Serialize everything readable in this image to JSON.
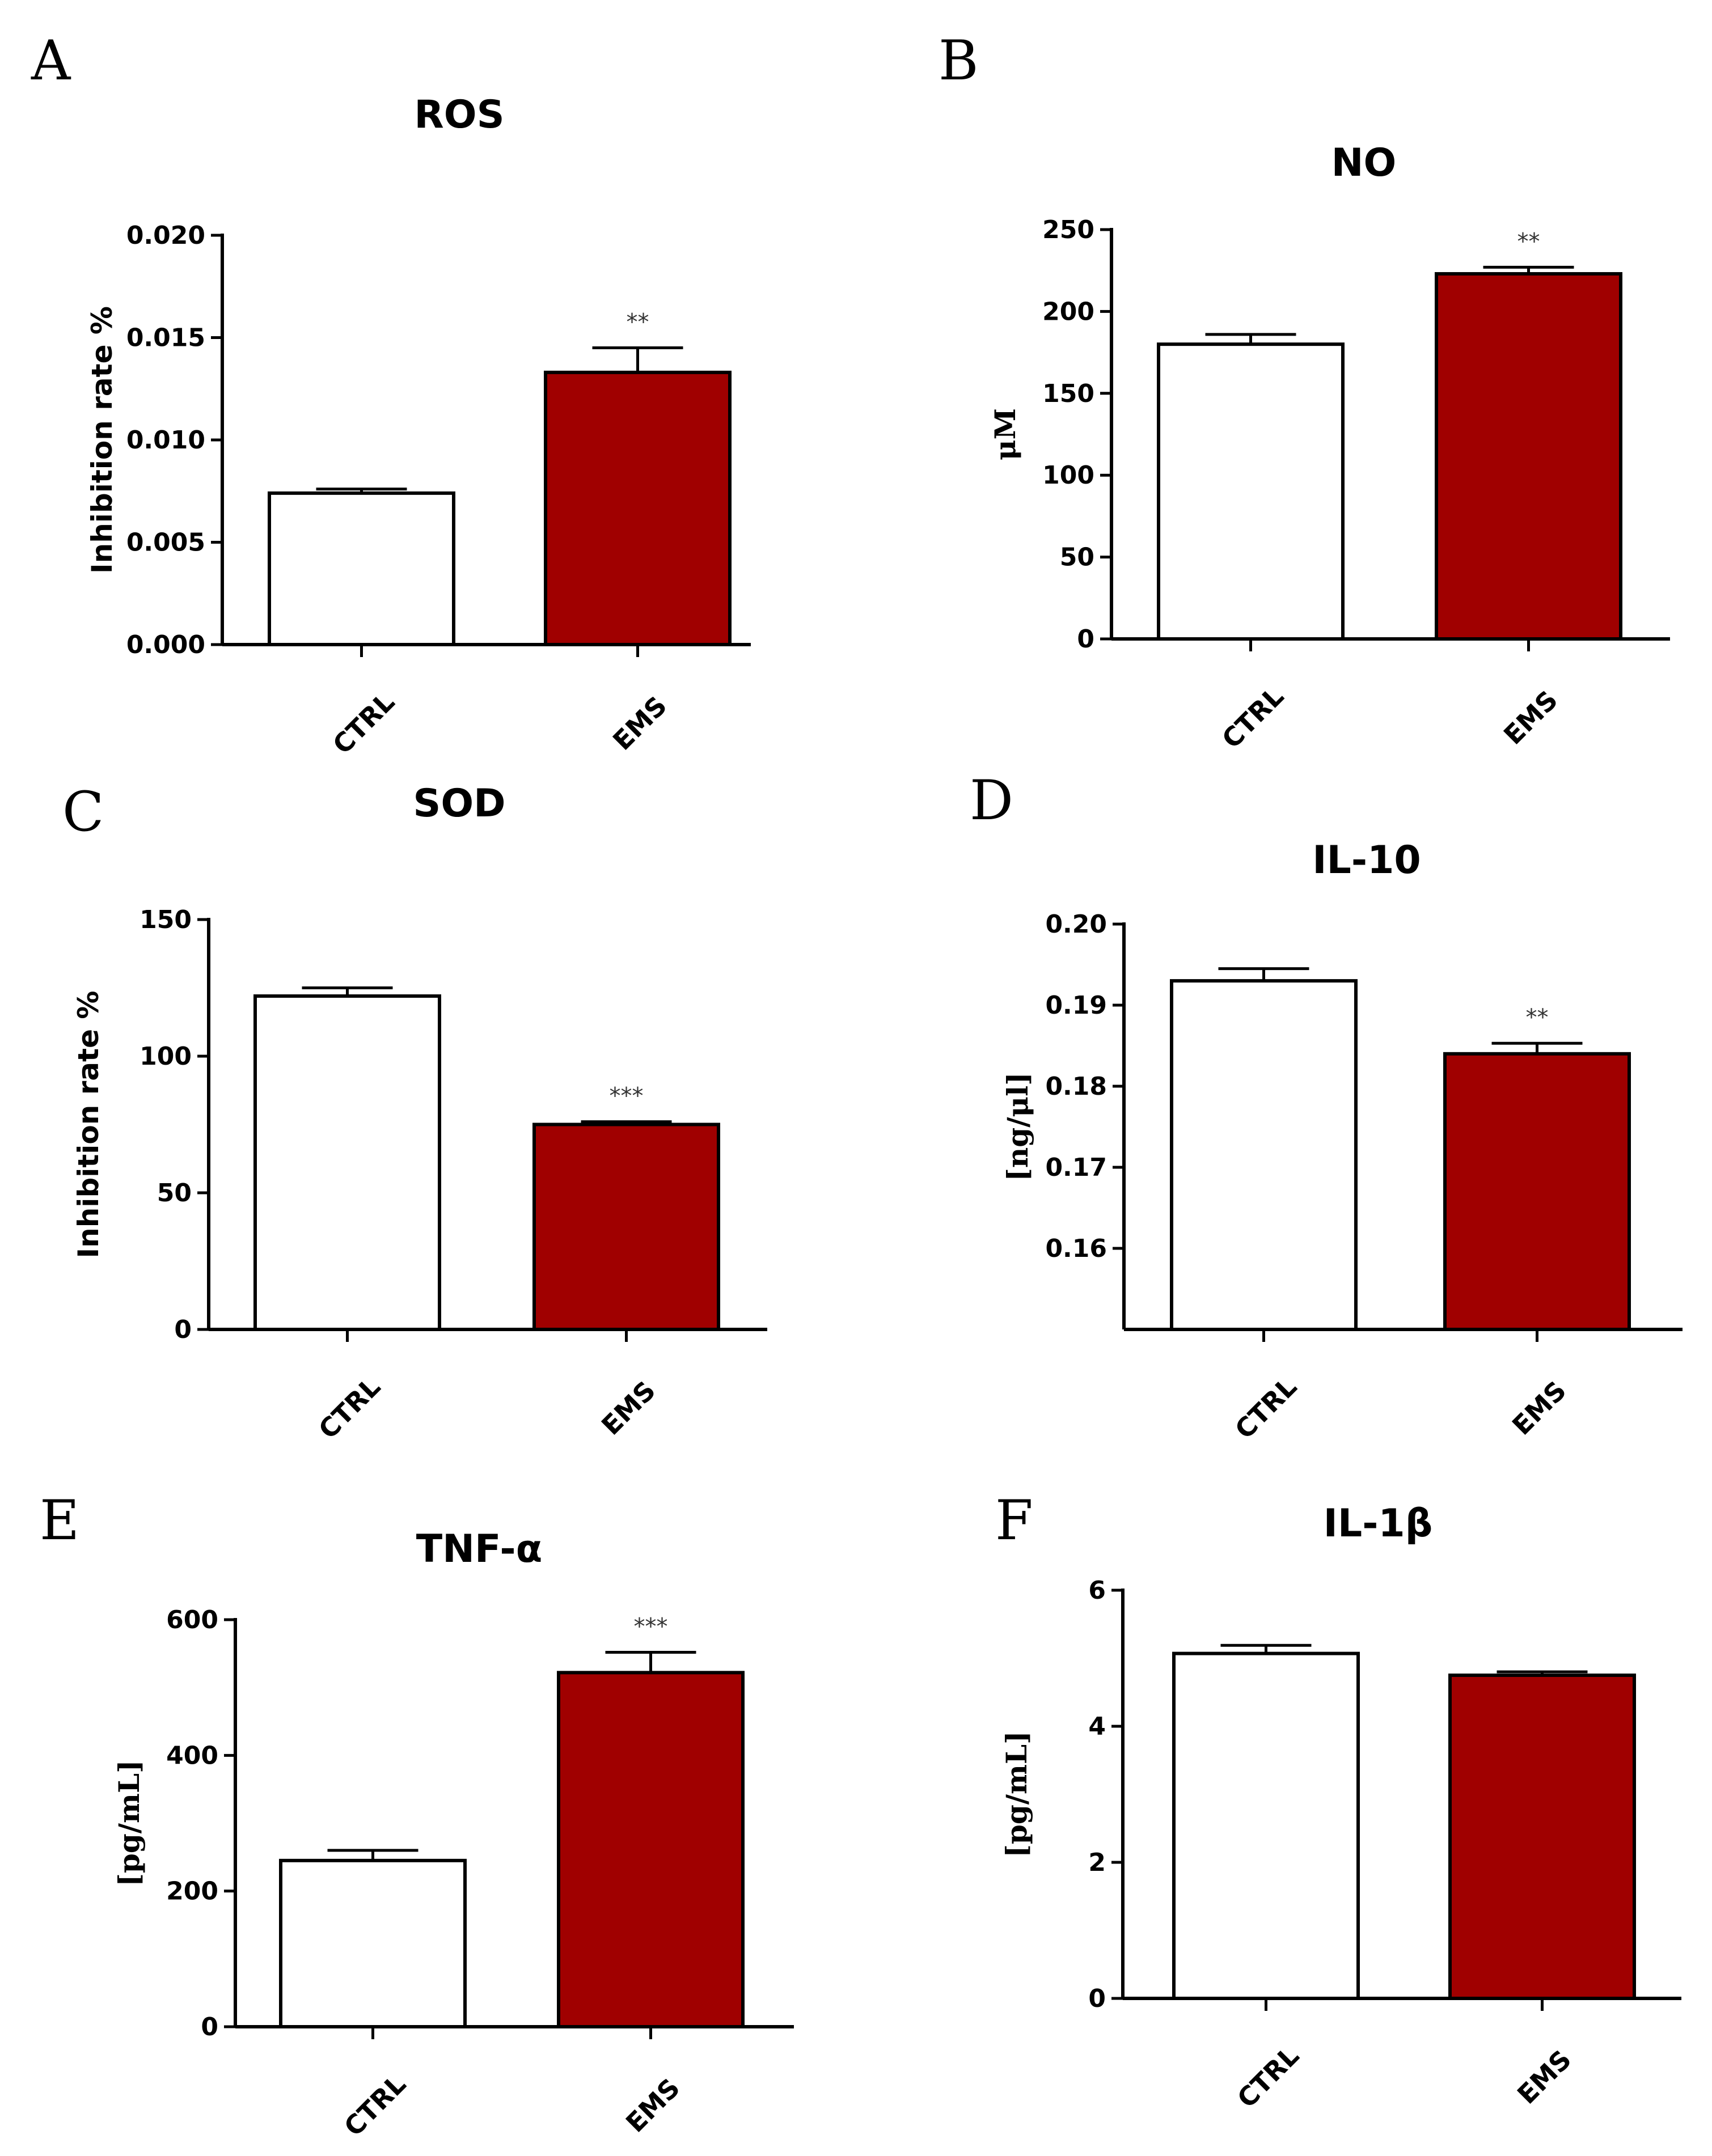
{
  "figure": {
    "colors": {
      "ctrl": "#ffffff",
      "ems": "#a00000",
      "axis": "#000000"
    }
  },
  "chart_data": [
    {
      "panel": "A",
      "type": "bar",
      "title": "ROS",
      "ylabel": "Inhibition rate %",
      "ylabel_style": "sans",
      "categories": [
        "CTRL",
        "EMS"
      ],
      "values": [
        0.0074,
        0.0133
      ],
      "errors": [
        0.0002,
        0.0012
      ],
      "significance": [
        "",
        "**"
      ],
      "ylim": [
        0,
        0.02
      ],
      "yticks": [
        0,
        0.005,
        0.01,
        0.015,
        0.02
      ],
      "ytick_labels": [
        "0.000",
        "0.005",
        "0.010",
        "0.015",
        "0.020"
      ]
    },
    {
      "panel": "B",
      "type": "bar",
      "title": "NO",
      "ylabel": "μM",
      "ylabel_style": "serif",
      "categories": [
        "CTRL",
        "EMS"
      ],
      "values": [
        180,
        223
      ],
      "errors": [
        6,
        4
      ],
      "significance": [
        "",
        "**"
      ],
      "ylim": [
        0,
        250
      ],
      "yticks": [
        0,
        50,
        100,
        150,
        200,
        250
      ],
      "ytick_labels": [
        "0",
        "50",
        "100",
        "150",
        "200",
        "250"
      ]
    },
    {
      "panel": "C",
      "type": "bar",
      "title": "SOD",
      "ylabel": "Inhibition rate %",
      "ylabel_style": "sans",
      "categories": [
        "CTRL",
        "EMS"
      ],
      "values": [
        122,
        75
      ],
      "errors": [
        3,
        1
      ],
      "significance": [
        "",
        "***"
      ],
      "ylim": [
        0,
        150
      ],
      "yticks": [
        0,
        50,
        100,
        150
      ],
      "ytick_labels": [
        "0",
        "50",
        "100",
        "150"
      ]
    },
    {
      "panel": "D",
      "type": "bar",
      "title": "IL-10",
      "ylabel": "[ng/μl]",
      "ylabel_style": "serif",
      "categories": [
        "CTRL",
        "EMS"
      ],
      "values": [
        0.193,
        0.184
      ],
      "errors": [
        0.0015,
        0.0013
      ],
      "significance": [
        "",
        "**"
      ],
      "ylim": [
        0.15,
        0.2
      ],
      "yticks": [
        0.16,
        0.17,
        0.18,
        0.19,
        0.2
      ],
      "ytick_labels": [
        "0.16",
        "0.17",
        "0.18",
        "0.19",
        "0.20"
      ]
    },
    {
      "panel": "E",
      "type": "bar",
      "title": "TNF-α",
      "ylabel": "[pg/mL]",
      "ylabel_style": "serif",
      "categories": [
        "CTRL",
        "EMS"
      ],
      "values": [
        245,
        522
      ],
      "errors": [
        15,
        30
      ],
      "significance": [
        "",
        "***"
      ],
      "ylim": [
        0,
        600
      ],
      "yticks": [
        0,
        200,
        400,
        600
      ],
      "ytick_labels": [
        "0",
        "200",
        "400",
        "600"
      ]
    },
    {
      "panel": "F",
      "type": "bar",
      "title": "IL-1β",
      "ylabel": "[pg/mL]",
      "ylabel_style": "serif",
      "categories": [
        "CTRL",
        "EMS"
      ],
      "values": [
        5.07,
        4.75
      ],
      "errors": [
        0.12,
        0.05
      ],
      "significance": [
        "",
        ""
      ],
      "ylim": [
        0,
        6
      ],
      "yticks": [
        0,
        2,
        4,
        6
      ],
      "ytick_labels": [
        "0",
        "2",
        "4",
        "6"
      ]
    }
  ]
}
